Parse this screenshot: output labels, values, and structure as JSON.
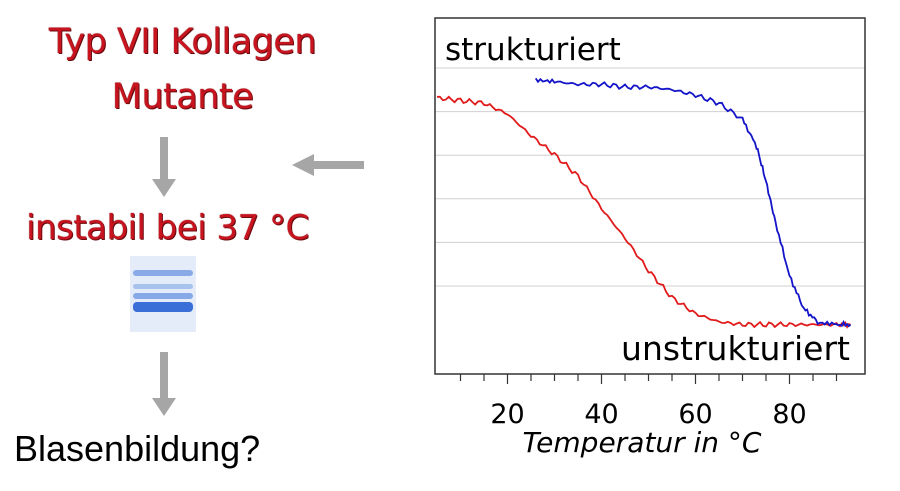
{
  "left_panel": {
    "title_line1": "Typ VII Kollagen",
    "title_line2": "Mutante",
    "instability_label": "instabil bei 37 °C",
    "question": "Blasenbildung?",
    "accent_color": "#c8141e",
    "arrow_color": "#a6a6a6",
    "gel_band_color": "#3a6fd8"
  },
  "chart_data": {
    "type": "line",
    "xlabel": "Temperatur in °C",
    "ylabel": "",
    "x_ticks": [
      20,
      40,
      60,
      80
    ],
    "xlim": [
      5,
      95
    ],
    "ylim": [
      0,
      1
    ],
    "grid": "horizontal",
    "annotations": [
      {
        "text": "strukturiert",
        "position": "top-left"
      },
      {
        "text": "unstrukturiert",
        "position": "bottom-right"
      }
    ],
    "series": [
      {
        "color": "#e11b1b",
        "x": [
          5,
          10,
          15,
          20,
          25,
          30,
          35,
          40,
          45,
          50,
          55,
          60,
          65,
          70,
          75,
          80,
          85,
          90,
          93
        ],
        "y": [
          0.86,
          0.85,
          0.84,
          0.8,
          0.72,
          0.65,
          0.57,
          0.45,
          0.34,
          0.22,
          0.12,
          0.06,
          0.03,
          0.02,
          0.02,
          0.02,
          0.02,
          0.02,
          0.02
        ]
      },
      {
        "color": "#1414c8",
        "x": [
          26,
          30,
          35,
          40,
          45,
          50,
          55,
          60,
          65,
          70,
          73,
          75,
          77,
          80,
          83,
          86,
          90,
          93
        ],
        "y": [
          0.93,
          0.92,
          0.91,
          0.91,
          0.9,
          0.9,
          0.89,
          0.87,
          0.84,
          0.78,
          0.68,
          0.55,
          0.4,
          0.2,
          0.08,
          0.03,
          0.02,
          0.02
        ]
      }
    ]
  }
}
